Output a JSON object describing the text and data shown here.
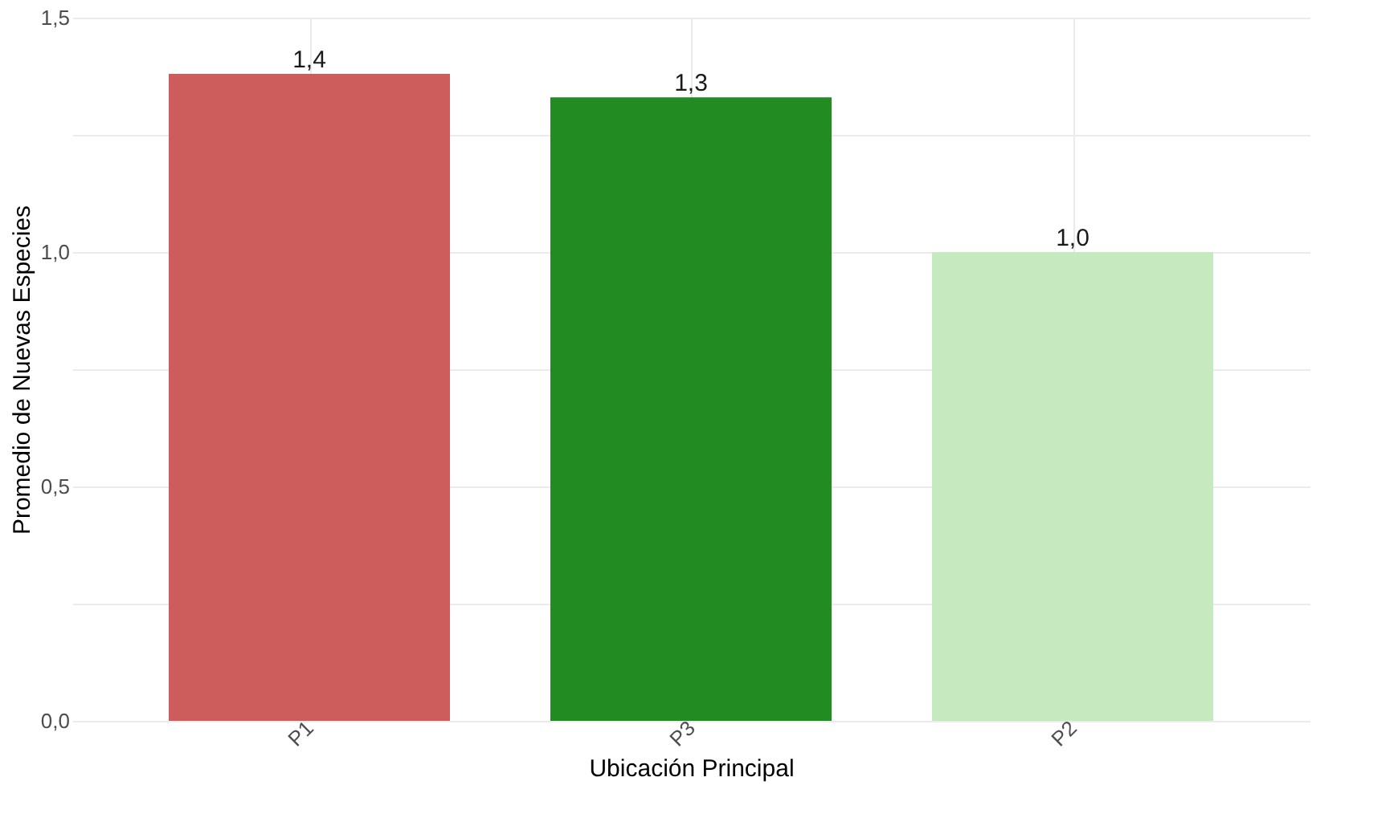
{
  "chart_data": {
    "type": "bar",
    "xlabel": "Ubicación Principal",
    "ylabel": "Promedio de Nuevas Especies",
    "categories": [
      "P1",
      "P3",
      "P2"
    ],
    "values": [
      1.38,
      1.33,
      1.0
    ],
    "colors": [
      "#cd5c5c",
      "#228b22",
      "#c7e9c0"
    ],
    "value_labels": [
      "1,4",
      "1,3",
      "1,0"
    ],
    "ylim": [
      0,
      1.5
    ],
    "yticks": [
      {
        "value": 0,
        "label": "0,0"
      },
      {
        "value": 0.25,
        "label": null
      },
      {
        "value": 0.5,
        "label": "0,5"
      },
      {
        "value": 0.75,
        "label": null
      },
      {
        "value": 1.0,
        "label": "1,0"
      },
      {
        "value": 1.25,
        "label": null
      },
      {
        "value": 1.5,
        "label": "1,5"
      }
    ],
    "grid": true
  }
}
